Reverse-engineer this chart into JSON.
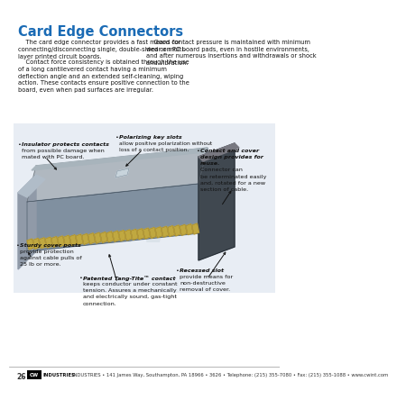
{
  "title": "Card Edge Connectors",
  "title_color": "#1a6bb5",
  "title_fontsize": 10.5,
  "bg_color": "#ffffff",
  "body_text_left1": "    The card edge connector provides a fast means for\nconnecting/disconnecting single, double-sided or multi-\nlayer printed circuit boards.",
  "body_text_left2": "    Contact force consistency is obtained through the use\nof a long cantilevered contact having a minimum\ndeflection angle and an extended self-cleaning, wiping\naction. These contacts ensure positive connection to the\nboard, even when pad surfaces are irregular.",
  "body_text_right": "    Good contact pressure is maintained with minimum\nwear on PC board pads, even in hostile environments,\nand after numerous insertions and withdrawals or shock\nand vibration.",
  "ann1_bold": "Insulator protects contacts",
  "ann1_normal": "\nfrom possible damage when\nmated with PC board.",
  "ann2_bold": "Polarizing key slots",
  "ann2_normal": " allow\npositive polarization without\nloss of a contact position.",
  "ann3_bold": "Contact and cover\ndesign provides for\nreuse.",
  "ann3_normal": " Connector can\nbe reterminated easily\nand, rotated for a new\nsection of cable.",
  "ann4_bold": "Sturdy cover posts",
  "ann4_normal": "\nprovide protection\nagainst cable pulls of\n25 lb or more.",
  "ann5_bold": "Patented Tang-Tite™ contact",
  "ann5_normal": "\nkeeps conductor under constant\ntension. Assures a mechanically\nand electrically sound, gas-tight\nconnection.",
  "ann6_bold": "Recessed slot",
  "ann6_normal": "\nprovide means for\nnon-destructive\nremoval of cover.",
  "footer_page": "26",
  "footer_text": "INDUSTRIES • 141 James Way, Southampton, PA 18966 • 3626 • Telephone: (215) 355-7080 • Fax: (215) 355-1088 • www.cwint.com",
  "footer_fontsize": 3.8,
  "text_fontsize": 4.8,
  "ann_fontsize": 4.6,
  "divider_color": "#999999",
  "connector_colors": {
    "body_top": "#b0b8c0",
    "body_side": "#8090a0",
    "body_front": "#909aa8",
    "contacts": "#c0a840",
    "cover_dark": "#404850",
    "cover_gray": "#787880",
    "bg": "#dce4ec"
  }
}
